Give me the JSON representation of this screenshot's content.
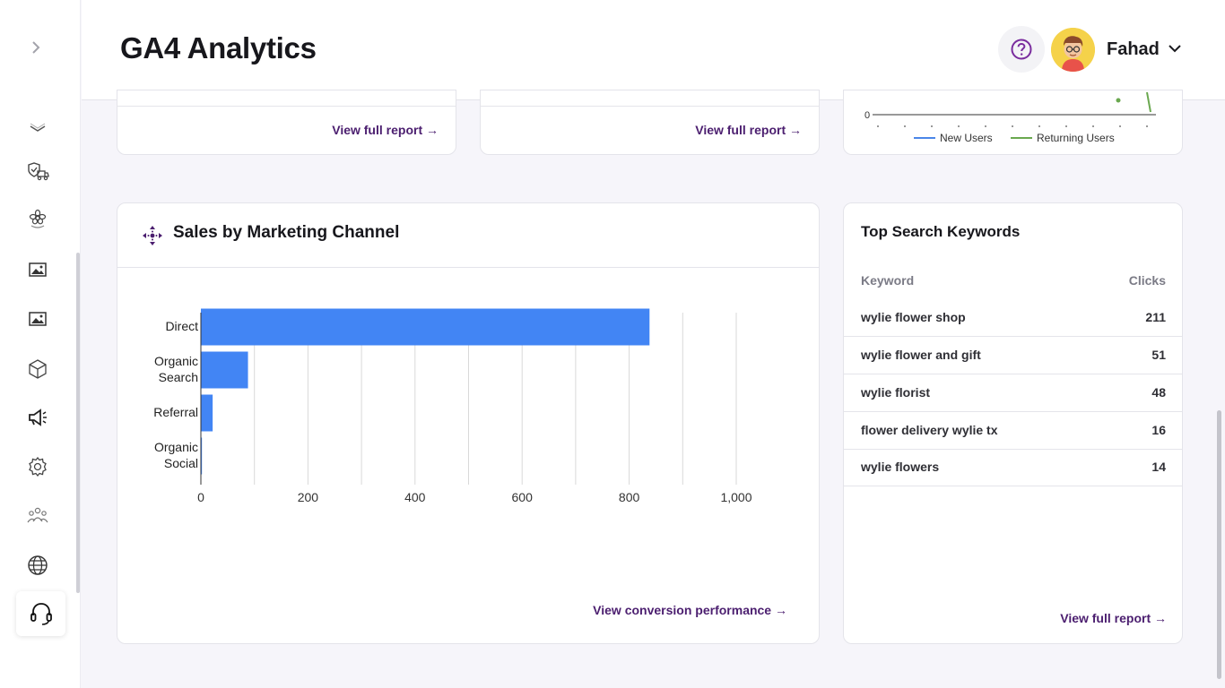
{
  "header": {
    "title": "GA4 Analytics",
    "user_name": "Fahad"
  },
  "sidebar": {
    "items": [
      {
        "icon": "chevron-down-icon"
      },
      {
        "icon": "shield-truck-icon"
      },
      {
        "icon": "flower-icon"
      },
      {
        "icon": "image-icon"
      },
      {
        "icon": "image-icon"
      },
      {
        "icon": "box-icon"
      },
      {
        "icon": "megaphone-icon"
      },
      {
        "icon": "gear-icon"
      },
      {
        "icon": "users-icon"
      },
      {
        "icon": "globe-icon"
      },
      {
        "icon": "headset-icon"
      }
    ]
  },
  "top_cards": {
    "card1_link": "View full report →",
    "card2_link": "View full report →",
    "card3_y_tick": "0",
    "card3_legend": [
      "New Users",
      "Returning Users"
    ]
  },
  "sales": {
    "title": "Sales by Marketing Channel",
    "link": "View conversion performance →"
  },
  "chart_data": {
    "type": "bar",
    "orientation": "horizontal",
    "title": "",
    "categories": [
      "Direct",
      "Organic Search",
      "Referral",
      "Organic Social"
    ],
    "category_lines": [
      [
        "Direct"
      ],
      [
        "Organic",
        "Search"
      ],
      [
        "Referral"
      ],
      [
        "Organic",
        "Social"
      ]
    ],
    "values": [
      838,
      88,
      22,
      2
    ],
    "xlim": [
      0,
      1000
    ],
    "x_ticks": [
      "0",
      "200",
      "400",
      "600",
      "800",
      "1,000"
    ],
    "grid": true,
    "color": "#4285f4"
  },
  "keywords": {
    "title": "Top Search Keywords",
    "col_keyword": "Keyword",
    "col_clicks": "Clicks",
    "rows": [
      {
        "keyword": "wylie flower shop",
        "clicks": "211"
      },
      {
        "keyword": "wylie flower and gift",
        "clicks": "51"
      },
      {
        "keyword": "wylie florist",
        "clicks": "48"
      },
      {
        "keyword": "flower delivery wylie tx",
        "clicks": "16"
      },
      {
        "keyword": "wylie flowers",
        "clicks": "14"
      }
    ],
    "link": "View full report →"
  },
  "colors": {
    "accent": "#4b1e6f",
    "bar": "#4285f4",
    "new_users": "#4a86e8",
    "returning_users": "#6aa84f"
  }
}
